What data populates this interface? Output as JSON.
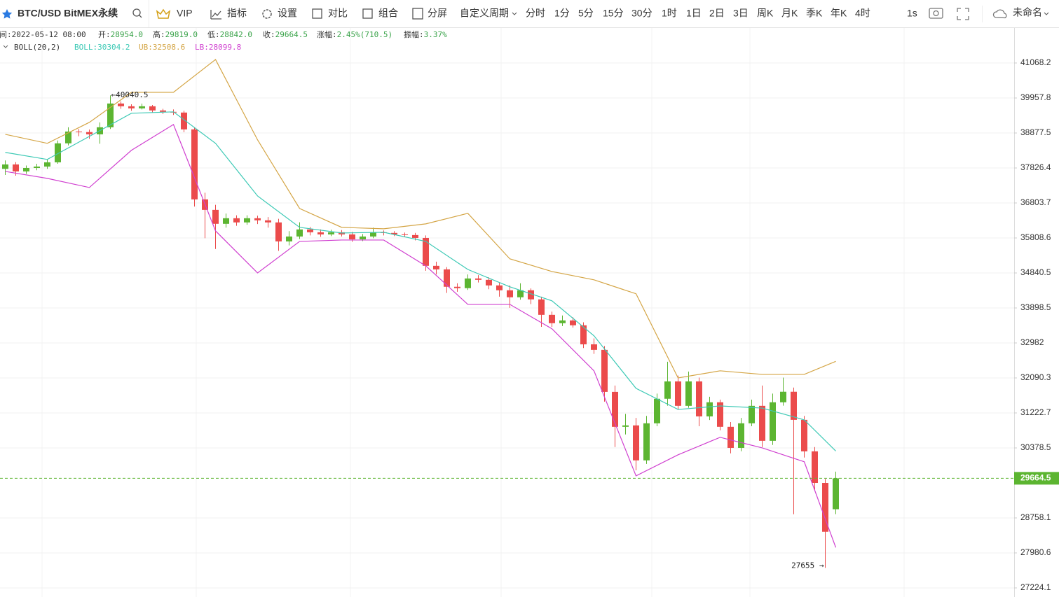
{
  "toolbar": {
    "symbol": "BTC/USD BitMEX永续",
    "items": [
      {
        "text": "VIP"
      },
      {
        "text": "指标"
      },
      {
        "text": "设置"
      },
      {
        "text": "对比"
      },
      {
        "text": "组合"
      },
      {
        "text": "分屏"
      },
      {
        "text": "自定义周期"
      },
      {
        "text": "分时"
      },
      {
        "text": "1分"
      },
      {
        "text": "5分"
      },
      {
        "text": "15分"
      },
      {
        "text": "30分"
      },
      {
        "text": "1时",
        "active": true
      },
      {
        "text": "1日"
      },
      {
        "text": "2日"
      },
      {
        "text": "3日"
      },
      {
        "text": "周K"
      },
      {
        "text": "月K"
      },
      {
        "text": "季K"
      },
      {
        "text": "年K"
      },
      {
        "text": "4时"
      },
      {
        "text": "1s"
      }
    ],
    "user": "未命名"
  },
  "chart_data": {
    "type": "candlestick",
    "info": [
      {
        "label": "时间:",
        "value": "2022-05-12 08:00"
      },
      {
        "label": "开:",
        "value": "28954.0"
      },
      {
        "label": "高:",
        "value": "29819.0"
      },
      {
        "label": "低:",
        "value": "28842.0"
      },
      {
        "label": "收:",
        "value": "29664.5"
      },
      {
        "label": "涨幅:",
        "value": "2.45%(710.5)"
      },
      {
        "label": "振幅:",
        "value": "3.37%"
      }
    ],
    "indicator": {
      "title": "BOLL(20,2)",
      "labels": [
        "BOLL:30304.2",
        "UB:32508.6",
        "LB:28099.8"
      ]
    },
    "open": [
      37800,
      37931,
      37724,
      37826,
      37868,
      37994,
      38563,
      38921,
      38905,
      38836,
      39051,
      39785,
      39699,
      39634,
      39699,
      39569,
      39526,
      39504,
      38986,
      36906,
      36605,
      36207,
      36366,
      36247,
      36366,
      36306,
      36247,
      35712,
      35849,
      36048,
      35968,
      35908,
      35968,
      35908,
      35770,
      35849,
      35968,
      35950,
      35908,
      35890,
      35809,
      35035,
      34938,
      34465,
      34428,
      34690,
      34653,
      34502,
      34371,
      34183,
      34371,
      34127,
      33716,
      33496,
      33569,
      33441,
      32946,
      32804,
      31742,
      30885,
      30919,
      30084,
      30970,
      31571,
      32003,
      31397,
      32003,
      31138,
      31484,
      30885,
      30379,
      30970,
      31397,
      30548,
      31484,
      31745,
      31054,
      30297,
      29557,
      28954
    ],
    "high": [
      38050,
      38000,
      37900,
      37950,
      38080,
      38650,
      39050,
      39000,
      38980,
      39200,
      40040.5,
      39850,
      39760,
      39780,
      39740,
      39620,
      39600,
      39560,
      39050,
      37100,
      36750,
      36500,
      36450,
      36450,
      36440,
      36400,
      36350,
      36000,
      36250,
      36120,
      36050,
      36040,
      36030,
      35980,
      35920,
      36100,
      36020,
      36000,
      35960,
      35950,
      35880,
      35150,
      35000,
      34560,
      34800,
      34780,
      34720,
      34580,
      34500,
      34560,
      34420,
      34200,
      33800,
      33700,
      33650,
      33520,
      33100,
      32900,
      31900,
      31200,
      31100,
      31150,
      31700,
      32500,
      32150,
      32250,
      32100,
      31620,
      31550,
      31000,
      31100,
      31550,
      31900,
      31700,
      32100,
      31850,
      31150,
      30400,
      29650,
      29819
    ],
    "low": [
      37620,
      37600,
      37650,
      37760,
      37800,
      37950,
      38500,
      38780,
      38700,
      38550,
      39000,
      39620,
      39560,
      39600,
      39500,
      39460,
      39430,
      38900,
      36700,
      35800,
      35500,
      36100,
      36150,
      36180,
      36200,
      36100,
      35450,
      35600,
      35780,
      35880,
      35840,
      35860,
      35850,
      35700,
      35720,
      35800,
      35880,
      35860,
      35830,
      35740,
      34900,
      34800,
      34300,
      34330,
      34380,
      34580,
      34400,
      34200,
      33900,
      34120,
      34000,
      33400,
      33400,
      33420,
      33380,
      32850,
      32700,
      31500,
      30400,
      30700,
      29850,
      30000,
      30900,
      31400,
      31300,
      31350,
      30900,
      31050,
      30800,
      30250,
      30300,
      30900,
      30400,
      30450,
      31400,
      28840,
      30150,
      29400,
      27655,
      28842
    ],
    "close": [
      37931,
      37724,
      37826,
      37868,
      37994,
      38563,
      38921,
      38905,
      38836,
      39051,
      39785,
      39699,
      39634,
      39699,
      39569,
      39526,
      39504,
      38986,
      36906,
      36605,
      36207,
      36366,
      36247,
      36366,
      36306,
      36247,
      35712,
      35849,
      36048,
      35968,
      35908,
      35968,
      35908,
      35770,
      35849,
      35968,
      35950,
      35908,
      35890,
      35809,
      35035,
      34938,
      34465,
      34428,
      34690,
      34653,
      34502,
      34371,
      34183,
      34371,
      34127,
      33716,
      33496,
      33569,
      33441,
      32946,
      32804,
      31742,
      30885,
      30919,
      30084,
      30970,
      31571,
      32003,
      31397,
      32003,
      31138,
      31484,
      30885,
      30379,
      30970,
      31397,
      30548,
      31484,
      31745,
      31054,
      30297,
      29557,
      28448,
      29664.5
    ],
    "up_color": "#5cb531",
    "down_color": "#eb4b4b",
    "overlays": [
      {
        "color": "#3cc9b5",
        "x": [
          0,
          4,
          8,
          12,
          16,
          20,
          24,
          28,
          32,
          36,
          40,
          44,
          48,
          52,
          56,
          60,
          64,
          68,
          72,
          76,
          79
        ],
        "values": [
          38290,
          38080,
          38773,
          39483,
          39526,
          38563,
          37006,
          36107,
          35948,
          35968,
          35712,
          34936,
          34465,
          34089,
          33167,
          31829,
          31307,
          31394,
          31342,
          31054,
          30304.2
        ]
      },
      {
        "color": "#d4a545",
        "x": [
          0,
          4,
          8,
          12,
          16,
          20,
          24,
          28,
          32,
          36,
          40,
          44,
          48,
          52,
          56,
          60,
          64,
          68,
          72,
          76,
          79
        ],
        "values": [
          38836,
          38563,
          39202,
          40136,
          40136,
          41179,
          38668,
          36645,
          36107,
          36067,
          36206,
          36505,
          35227,
          34880,
          34653,
          34277,
          32090,
          32270,
          32179,
          32179,
          32508.6
        ]
      },
      {
        "color": "#d040d0",
        "x": [
          0,
          4,
          8,
          12,
          16,
          20,
          24,
          28,
          32,
          36,
          40,
          44,
          48,
          52,
          56,
          60,
          64,
          68,
          72,
          76,
          79
        ],
        "values": [
          37724,
          37519,
          37252,
          38353,
          39137,
          36008,
          34841,
          35712,
          35751,
          35751,
          35035,
          33993,
          33993,
          33350,
          32270,
          29721,
          30215,
          30632,
          30379,
          30051,
          28099.8
        ]
      }
    ],
    "ylim": [
      27030.7,
      42209
    ],
    "log": true,
    "grid": true,
    "yticks": [
      41068.2,
      39957.8,
      38877.5,
      37826.4,
      36803.7,
      35808.6,
      34840.5,
      33898.5,
      32982.0,
      32090.3,
      31222.7,
      30378.5,
      28758.1,
      27980.6,
      27224.1
    ],
    "last_price": 29664.5,
    "annotations": [
      {
        "text": "←40040.5"
      },
      {
        "text": "27655 →"
      }
    ]
  }
}
